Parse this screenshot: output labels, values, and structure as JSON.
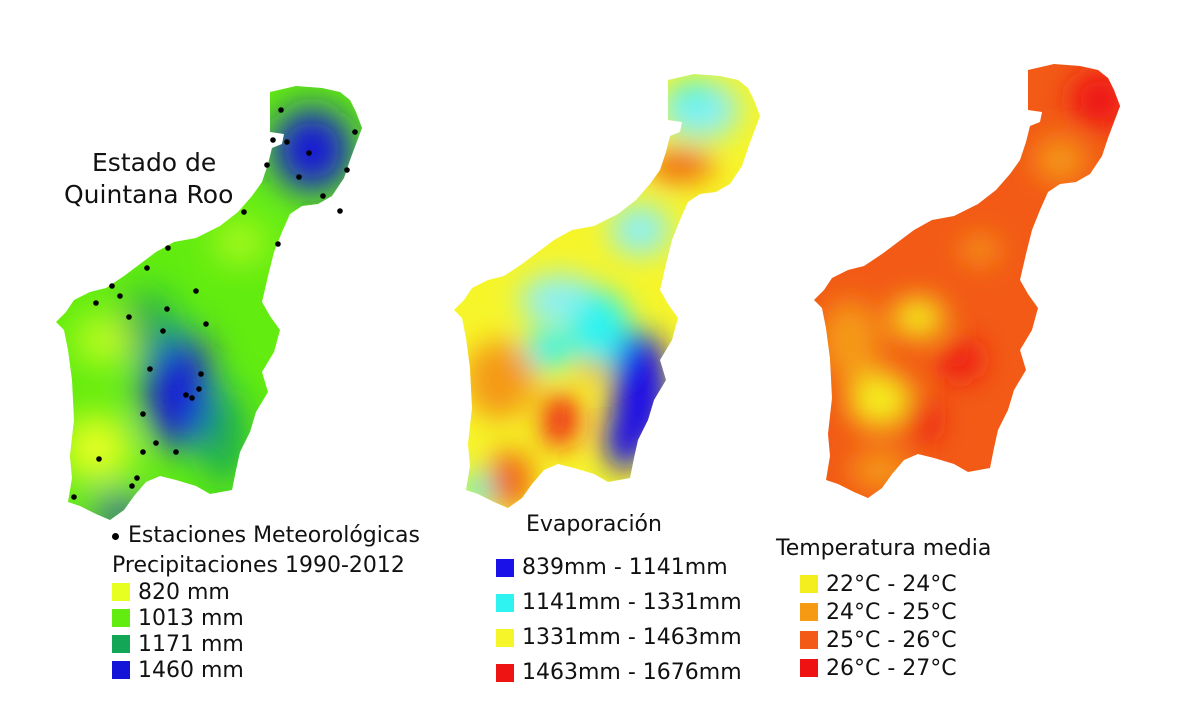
{
  "map_title": [
    "Estado de",
    "Quintana Roo"
  ],
  "stations_label": "Estaciones Meteorológicas",
  "precip": {
    "title": "Precipitaciones 1990-2012",
    "classes": [
      {
        "label": "820 mm",
        "color": "#e8ff22"
      },
      {
        "label": "1013 mm",
        "color": "#62ec10"
      },
      {
        "label": "1171 mm",
        "color": "#13a656"
      },
      {
        "label": "1460 mm",
        "color": "#1414d8"
      }
    ]
  },
  "evap": {
    "title": "Evaporación",
    "classes": [
      {
        "label": "839mm - 1141mm",
        "color": "#1a10e8"
      },
      {
        "label": "1141mm - 1331mm",
        "color": "#2ef3f0"
      },
      {
        "label": "1331mm - 1463mm",
        "color": "#f6f52a"
      },
      {
        "label": "1463mm - 1676mm",
        "color": "#ee1414"
      }
    ]
  },
  "temp": {
    "title": "Temperatura media",
    "classes": [
      {
        "label": "22°C - 24°C",
        "color": "#f5ee1e"
      },
      {
        "label": "24°C - 25°C",
        "color": "#f59a12"
      },
      {
        "label": "25°C - 26°C",
        "color": "#f25a16"
      },
      {
        "label": "26°C - 27°C",
        "color": "#ee1212"
      }
    ]
  }
}
